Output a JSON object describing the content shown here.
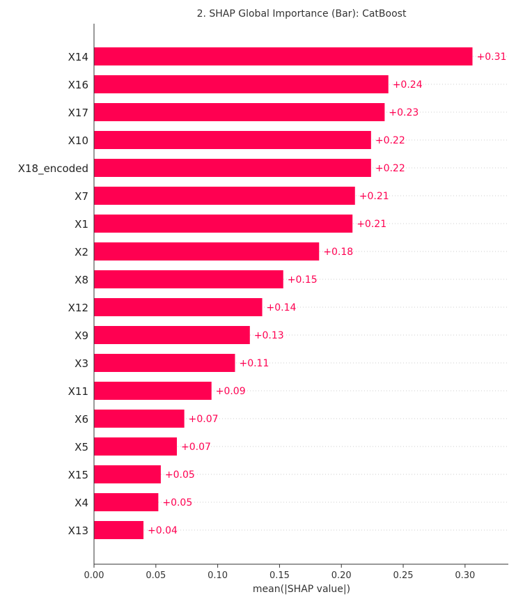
{
  "chart_data": {
    "type": "bar",
    "orientation": "horizontal",
    "title": "2. SHAP Global Importance (Bar): CatBoost",
    "xlabel": "mean(|SHAP value|)",
    "ylabel": "",
    "xlim": [
      0,
      0.335
    ],
    "xticks": [
      0.0,
      0.05,
      0.1,
      0.15,
      0.2,
      0.25,
      0.3
    ],
    "xtick_labels": [
      "0.00",
      "0.05",
      "0.10",
      "0.15",
      "0.20",
      "0.25",
      "0.30"
    ],
    "grid": "horizontal dotted lines per row",
    "bar_color": "#ff0051",
    "label_color": "#ff0051",
    "categories": [
      "X14",
      "X16",
      "X17",
      "X10",
      "X18_encoded",
      "X7",
      "X1",
      "X2",
      "X8",
      "X12",
      "X9",
      "X3",
      "X11",
      "X6",
      "X5",
      "X15",
      "X4",
      "X13"
    ],
    "values": [
      0.306,
      0.238,
      0.235,
      0.224,
      0.224,
      0.211,
      0.209,
      0.182,
      0.153,
      0.136,
      0.126,
      0.114,
      0.095,
      0.073,
      0.067,
      0.054,
      0.052,
      0.04
    ],
    "value_labels": [
      "+0.31",
      "+0.24",
      "+0.23",
      "+0.22",
      "+0.22",
      "+0.21",
      "+0.21",
      "+0.18",
      "+0.15",
      "+0.14",
      "+0.13",
      "+0.11",
      "+0.09",
      "+0.07",
      "+0.07",
      "+0.05",
      "+0.05",
      "+0.04"
    ]
  }
}
